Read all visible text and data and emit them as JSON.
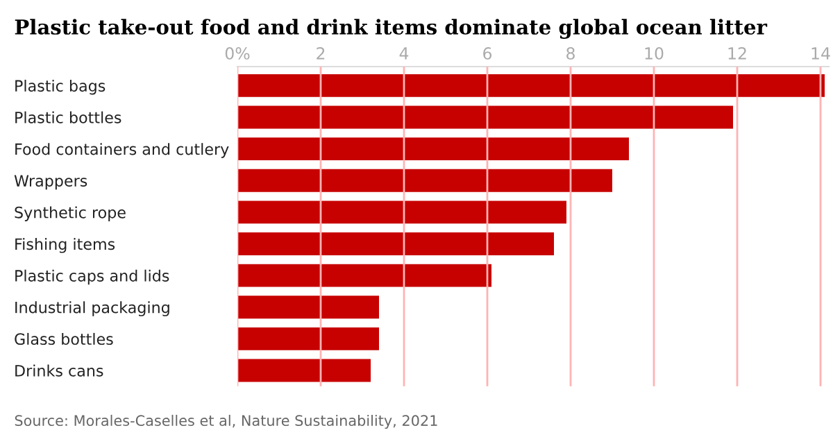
{
  "chart_data": {
    "type": "bar",
    "orientation": "horizontal",
    "title": "Plastic take-out food and drink items dominate global ocean litter",
    "categories": [
      "Plastic bags",
      "Plastic bottles",
      "Food containers and cutlery",
      "Wrappers",
      "Synthetic rope",
      "Fishing items",
      "Plastic caps and lids",
      "Industrial packaging",
      "Glass bottles",
      "Drinks cans"
    ],
    "values": [
      14.1,
      11.9,
      9.4,
      9.0,
      7.9,
      7.6,
      6.1,
      3.4,
      3.4,
      3.2
    ],
    "color": "#c70000",
    "xlim": [
      0,
      14.2
    ],
    "xticks": [
      {
        "value": 0,
        "label": "0%"
      },
      2,
      4,
      6,
      8,
      10,
      12,
      14
    ],
    "grid": "x",
    "annotations": [
      "Source: Morales-Caselles et al, Nature Sustainability, 2021"
    ]
  }
}
